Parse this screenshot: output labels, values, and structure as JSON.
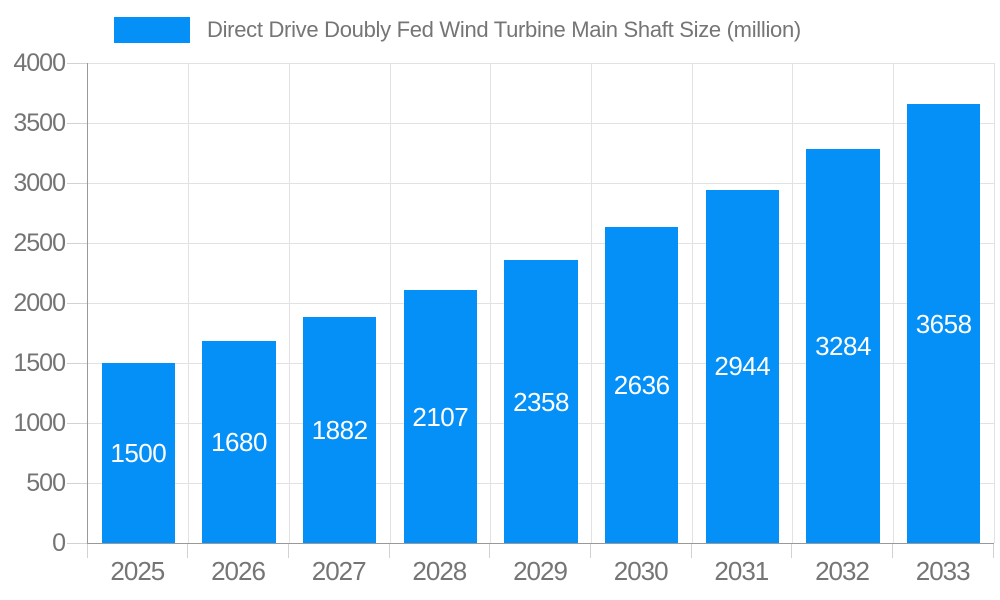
{
  "legend": {
    "label": "Direct Drive Doubly Fed Wind Turbine Main Shaft Size (million)"
  },
  "chart_data": {
    "type": "bar",
    "title": "Direct Drive Doubly Fed Wind Turbine Main Shaft Size (million)",
    "categories": [
      "2025",
      "2026",
      "2027",
      "2028",
      "2029",
      "2030",
      "2031",
      "2032",
      "2033"
    ],
    "values": [
      1500,
      1680,
      1882,
      2107,
      2358,
      2636,
      2944,
      3284,
      3658
    ],
    "xlabel": "",
    "ylabel": "",
    "ylim": [
      0,
      4000
    ],
    "yticks": [
      0,
      500,
      1000,
      1500,
      2000,
      2500,
      3000,
      3500,
      4000
    ],
    "grid": true,
    "legend_position": "top-left",
    "colors": {
      "bar": "#0490f7",
      "value_label": "#ffffff",
      "axis_label": "#757575",
      "legend_text": "#757575",
      "axis_line": "#999999",
      "gridline": "#e2e2e2",
      "tick": "#d2d2d2",
      "background": "#ffffff"
    }
  }
}
